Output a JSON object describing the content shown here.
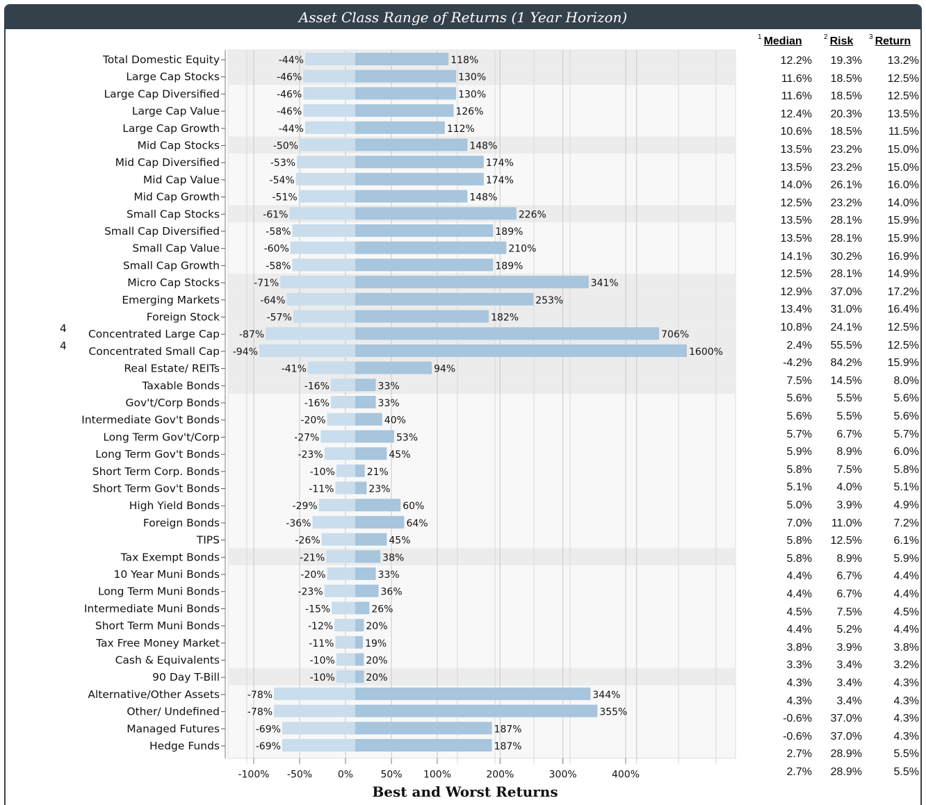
{
  "title": "Asset Class Range of Returns (1 Year Horizon)",
  "subtitle": "Best and Worst Returns",
  "stats_headers": {
    "median": {
      "sup": "1",
      "label": "Median"
    },
    "risk": {
      "sup": "2",
      "label": "Risk"
    },
    "return": {
      "sup": "3",
      "label": "Return"
    }
  },
  "colors": {
    "header_bg": "#34404a",
    "worst_bar": "#c9ddec",
    "best_bar": "#a7c5dc",
    "band": "#ececec"
  },
  "chart_data": {
    "type": "bar",
    "orientation": "horizontal",
    "xlabel": "",
    "ylabel": "",
    "x_ticks": [
      "-100%",
      "-50%",
      "0%",
      "50%",
      "100%",
      "200%",
      "300%",
      "400%"
    ],
    "series": [
      {
        "name": "Worst",
        "unit": "%"
      },
      {
        "name": "Best",
        "unit": "%"
      }
    ],
    "rows": [
      {
        "label": "Total Domestic Equity",
        "sup": "",
        "worst": -44,
        "worst_label": "-44%",
        "best": 118,
        "best_label": "118%",
        "median": "12.2%",
        "risk": "19.3%",
        "ret": "13.2%",
        "shaded": true
      },
      {
        "label": "Large Cap Stocks",
        "sup": "",
        "worst": -46,
        "worst_label": "-46%",
        "best": 130,
        "best_label": "130%",
        "median": "11.6%",
        "risk": "18.5%",
        "ret": "12.5%",
        "shaded": true
      },
      {
        "label": "Large Cap Diversified",
        "sup": "",
        "worst": -46,
        "worst_label": "-46%",
        "best": 130,
        "best_label": "130%",
        "median": "11.6%",
        "risk": "18.5%",
        "ret": "12.5%",
        "shaded": false
      },
      {
        "label": "Large Cap Value",
        "sup": "",
        "worst": -46,
        "worst_label": "-46%",
        "best": 126,
        "best_label": "126%",
        "median": "12.4%",
        "risk": "20.3%",
        "ret": "13.5%",
        "shaded": false
      },
      {
        "label": "Large Cap Growth",
        "sup": "",
        "worst": -44,
        "worst_label": "-44%",
        "best": 112,
        "best_label": "112%",
        "median": "10.6%",
        "risk": "18.5%",
        "ret": "11.5%",
        "shaded": false
      },
      {
        "label": "Mid Cap Stocks",
        "sup": "",
        "worst": -50,
        "worst_label": "-50%",
        "best": 148,
        "best_label": "148%",
        "median": "13.5%",
        "risk": "23.2%",
        "ret": "15.0%",
        "shaded": true
      },
      {
        "label": "Mid Cap Diversified",
        "sup": "",
        "worst": -53,
        "worst_label": "-53%",
        "best": 174,
        "best_label": "174%",
        "median": "13.5%",
        "risk": "23.2%",
        "ret": "15.0%",
        "shaded": false
      },
      {
        "label": "Mid Cap Value",
        "sup": "",
        "worst": -54,
        "worst_label": "-54%",
        "best": 174,
        "best_label": "174%",
        "median": "14.0%",
        "risk": "26.1%",
        "ret": "16.0%",
        "shaded": false
      },
      {
        "label": "Mid Cap Growth",
        "sup": "",
        "worst": -51,
        "worst_label": "-51%",
        "best": 148,
        "best_label": "148%",
        "median": "12.5%",
        "risk": "23.2%",
        "ret": "14.0%",
        "shaded": false
      },
      {
        "label": "Small Cap Stocks",
        "sup": "",
        "worst": -61,
        "worst_label": "-61%",
        "best": 226,
        "best_label": "226%",
        "median": "13.5%",
        "risk": "28.1%",
        "ret": "15.9%",
        "shaded": true
      },
      {
        "label": "Small Cap Diversified",
        "sup": "",
        "worst": -58,
        "worst_label": "-58%",
        "best": 189,
        "best_label": "189%",
        "median": "13.5%",
        "risk": "28.1%",
        "ret": "15.9%",
        "shaded": false
      },
      {
        "label": "Small Cap Value",
        "sup": "",
        "worst": -60,
        "worst_label": "-60%",
        "best": 210,
        "best_label": "210%",
        "median": "14.1%",
        "risk": "30.2%",
        "ret": "16.9%",
        "shaded": false
      },
      {
        "label": "Small Cap Growth",
        "sup": "",
        "worst": -58,
        "worst_label": "-58%",
        "best": 189,
        "best_label": "189%",
        "median": "12.5%",
        "risk": "28.1%",
        "ret": "14.9%",
        "shaded": false
      },
      {
        "label": "Micro Cap Stocks",
        "sup": "",
        "worst": -71,
        "worst_label": "-71%",
        "best": 341,
        "best_label": "341%",
        "median": "12.9%",
        "risk": "37.0%",
        "ret": "17.2%",
        "shaded": true
      },
      {
        "label": "Emerging Markets",
        "sup": "",
        "worst": -64,
        "worst_label": "-64%",
        "best": 253,
        "best_label": "253%",
        "median": "13.4%",
        "risk": "31.0%",
        "ret": "16.4%",
        "shaded": true
      },
      {
        "label": "Foreign Stock",
        "sup": "",
        "worst": -57,
        "worst_label": "-57%",
        "best": 182,
        "best_label": "182%",
        "median": "10.8%",
        "risk": "24.1%",
        "ret": "12.5%",
        "shaded": true
      },
      {
        "label": "Concentrated Large Cap",
        "sup": "4",
        "worst": -87,
        "worst_label": "-87%",
        "best": 706,
        "best_label": "706%",
        "median": "2.4%",
        "risk": "55.5%",
        "ret": "12.5%",
        "shaded": true
      },
      {
        "label": "Concentrated Small Cap",
        "sup": "4",
        "worst": -94,
        "worst_label": "-94%",
        "best": 1600,
        "best_label": "1600%",
        "median": "-4.2%",
        "risk": "84.2%",
        "ret": "15.9%",
        "shaded": true
      },
      {
        "label": "Real Estate/ REITs",
        "sup": "",
        "worst": -41,
        "worst_label": "-41%",
        "best": 94,
        "best_label": "94%",
        "median": "7.5%",
        "risk": "14.5%",
        "ret": "8.0%",
        "shaded": true
      },
      {
        "label": "Taxable Bonds",
        "sup": "",
        "worst": -16,
        "worst_label": "-16%",
        "best": 33,
        "best_label": "33%",
        "median": "5.6%",
        "risk": "5.5%",
        "ret": "5.6%",
        "shaded": true
      },
      {
        "label": "Gov't/Corp Bonds",
        "sup": "",
        "worst": -16,
        "worst_label": "-16%",
        "best": 33,
        "best_label": "33%",
        "median": "5.6%",
        "risk": "5.5%",
        "ret": "5.6%",
        "shaded": false
      },
      {
        "label": "Intermediate Gov't Bonds",
        "sup": "",
        "worst": -20,
        "worst_label": "-20%",
        "best": 40,
        "best_label": "40%",
        "median": "5.7%",
        "risk": "6.7%",
        "ret": "5.7%",
        "shaded": false
      },
      {
        "label": "Long Term Gov't/Corp",
        "sup": "",
        "worst": -27,
        "worst_label": "-27%",
        "best": 53,
        "best_label": "53%",
        "median": "5.9%",
        "risk": "8.9%",
        "ret": "6.0%",
        "shaded": false
      },
      {
        "label": "Long Term Gov't Bonds",
        "sup": "",
        "worst": -23,
        "worst_label": "-23%",
        "best": 45,
        "best_label": "45%",
        "median": "5.8%",
        "risk": "7.5%",
        "ret": "5.8%",
        "shaded": false
      },
      {
        "label": "Short Term Corp. Bonds",
        "sup": "",
        "worst": -10,
        "worst_label": "-10%",
        "best": 21,
        "best_label": "21%",
        "median": "5.1%",
        "risk": "4.0%",
        "ret": "5.1%",
        "shaded": false
      },
      {
        "label": "Short Term Gov't Bonds",
        "sup": "",
        "worst": -11,
        "worst_label": "-11%",
        "best": 23,
        "best_label": "23%",
        "median": "5.0%",
        "risk": "3.9%",
        "ret": "4.9%",
        "shaded": false
      },
      {
        "label": "High Yield Bonds",
        "sup": "",
        "worst": -29,
        "worst_label": "-29%",
        "best": 60,
        "best_label": "60%",
        "median": "7.0%",
        "risk": "11.0%",
        "ret": "7.2%",
        "shaded": false
      },
      {
        "label": "Foreign Bonds",
        "sup": "",
        "worst": -36,
        "worst_label": "-36%",
        "best": 64,
        "best_label": "64%",
        "median": "5.8%",
        "risk": "12.5%",
        "ret": "6.1%",
        "shaded": false
      },
      {
        "label": "TIPS",
        "sup": "",
        "worst": -26,
        "worst_label": "-26%",
        "best": 45,
        "best_label": "45%",
        "median": "5.8%",
        "risk": "8.9%",
        "ret": "5.9%",
        "shaded": false
      },
      {
        "label": "Tax Exempt Bonds",
        "sup": "",
        "worst": -21,
        "worst_label": "-21%",
        "best": 38,
        "best_label": "38%",
        "median": "4.4%",
        "risk": "6.7%",
        "ret": "4.4%",
        "shaded": true
      },
      {
        "label": "10 Year Muni Bonds",
        "sup": "",
        "worst": -20,
        "worst_label": "-20%",
        "best": 33,
        "best_label": "33%",
        "median": "4.4%",
        "risk": "6.7%",
        "ret": "4.4%",
        "shaded": false
      },
      {
        "label": "Long Term Muni Bonds",
        "sup": "",
        "worst": -23,
        "worst_label": "-23%",
        "best": 36,
        "best_label": "36%",
        "median": "4.5%",
        "risk": "7.5%",
        "ret": "4.5%",
        "shaded": false
      },
      {
        "label": "Intermediate Muni Bonds",
        "sup": "",
        "worst": -15,
        "worst_label": "-15%",
        "best": 26,
        "best_label": "26%",
        "median": "4.4%",
        "risk": "5.2%",
        "ret": "4.4%",
        "shaded": false
      },
      {
        "label": "Short Term Muni Bonds",
        "sup": "",
        "worst": -12,
        "worst_label": "-12%",
        "best": 20,
        "best_label": "20%",
        "median": "3.8%",
        "risk": "3.9%",
        "ret": "3.8%",
        "shaded": false
      },
      {
        "label": "Tax Free Money Market",
        "sup": "",
        "worst": -11,
        "worst_label": "-11%",
        "best": 19,
        "best_label": "19%",
        "median": "3.3%",
        "risk": "3.4%",
        "ret": "3.2%",
        "shaded": false
      },
      {
        "label": "Cash & Equivalents",
        "sup": "",
        "worst": -10,
        "worst_label": "-10%",
        "best": 20,
        "best_label": "20%",
        "median": "4.3%",
        "risk": "3.4%",
        "ret": "4.3%",
        "shaded": false
      },
      {
        "label": "90 Day T-Bill",
        "sup": "",
        "worst": -10,
        "worst_label": "-10%",
        "best": 20,
        "best_label": "20%",
        "median": "4.3%",
        "risk": "3.4%",
        "ret": "4.3%",
        "shaded": true
      },
      {
        "label": "Alternative/Other Assets",
        "sup": "",
        "worst": -78,
        "worst_label": "-78%",
        "best": 344,
        "best_label": "344%",
        "median": "-0.6%",
        "risk": "37.0%",
        "ret": "4.3%",
        "shaded": false
      },
      {
        "label": "Other/ Undefined",
        "sup": "",
        "worst": -78,
        "worst_label": "-78%",
        "best": 355,
        "best_label": "355%",
        "median": "-0.6%",
        "risk": "37.0%",
        "ret": "4.3%",
        "shaded": false
      },
      {
        "label": "Managed Futures",
        "sup": "",
        "worst": -69,
        "worst_label": "-69%",
        "best": 187,
        "best_label": "187%",
        "median": "2.7%",
        "risk": "28.9%",
        "ret": "5.5%",
        "shaded": false
      },
      {
        "label": "Hedge Funds",
        "sup": "",
        "worst": -69,
        "worst_label": "-69%",
        "best": 187,
        "best_label": "187%",
        "median": "2.7%",
        "risk": "28.9%",
        "ret": "5.5%",
        "shaded": false
      }
    ]
  }
}
